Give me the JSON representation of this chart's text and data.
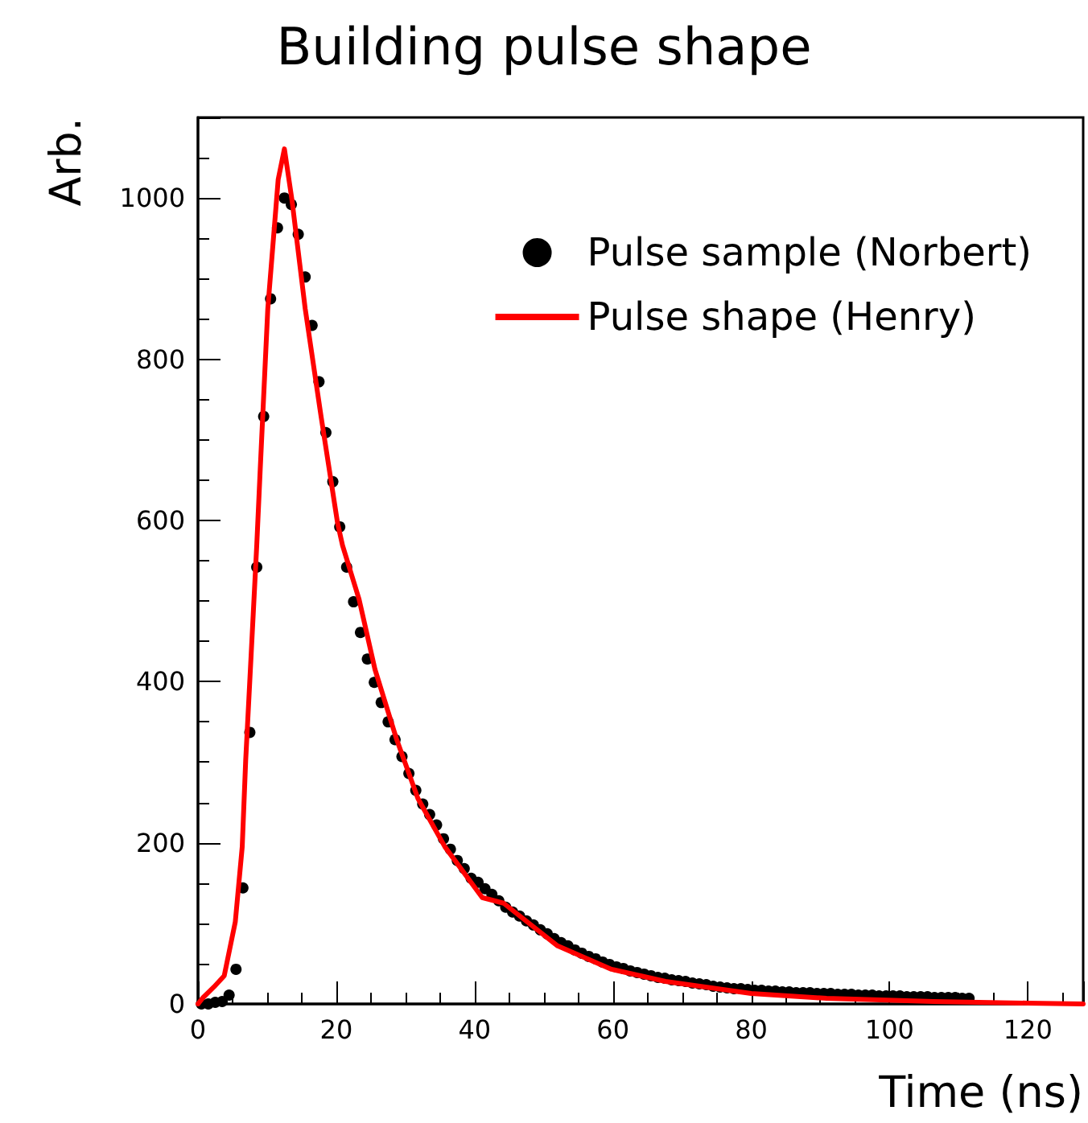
{
  "chart_data": {
    "type": "scatter",
    "title": "Building pulse shape",
    "xlabel": "Time (ns)",
    "ylabel": "Arb.",
    "xlim": [
      0,
      128
    ],
    "xticks": [
      0,
      20,
      40,
      60,
      80,
      100,
      120
    ],
    "ylim": [
      0,
      1100
    ],
    "yticks": [
      0,
      200,
      400,
      600,
      800,
      1000
    ],
    "grid": false,
    "legend": "top right",
    "series": [
      {
        "name": "Pulse sample (Norbert)",
        "marker": "circle",
        "color": "#000000",
        "x": [
          0.5,
          1.5,
          2.5,
          3.5,
          4.5,
          5.5,
          6.5,
          7.5,
          8.5,
          9.5,
          10.5,
          11.5,
          12.5,
          13.5,
          14.5,
          15.5,
          16.5,
          17.5,
          18.5,
          19.5,
          20.5,
          21.5,
          22.5,
          23.5,
          24.5,
          25.5,
          26.5,
          27.5,
          28.5,
          29.5,
          30.5,
          31.5,
          32.5,
          33.5,
          34.5,
          35.5,
          36.5,
          37.5,
          38.5,
          39.5,
          40.5,
          41.5,
          42.5,
          43.5,
          44.5,
          45.5,
          46.5,
          47.5,
          48.5,
          49.5,
          50.5,
          51.5,
          52.5,
          53.5,
          54.5,
          55.5,
          56.5,
          57.5,
          58.5,
          59.5,
          60.5,
          61.5,
          62.5,
          63.5,
          64.5,
          65.5,
          66.5,
          67.5,
          68.5,
          69.5,
          70.5,
          71.5,
          72.5,
          73.5,
          74.5,
          75.5,
          76.5,
          77.5,
          78.5,
          79.5,
          80.5,
          81.5,
          82.5,
          83.5,
          84.5,
          85.5,
          86.5,
          87.5,
          88.5,
          89.5,
          90.5,
          91.5,
          92.5,
          93.5,
          94.5,
          95.5,
          96.5,
          97.5,
          98.5,
          99.5,
          100.5,
          101.5,
          102.5,
          103.5,
          104.5,
          105.5,
          106.5,
          107.5,
          108.5,
          109.5,
          110.5,
          111.5
        ],
        "values": [
          0,
          0,
          2,
          3,
          11,
          43,
          144,
          337,
          542,
          729,
          875,
          963,
          1000,
          992,
          955,
          902,
          842,
          772,
          709,
          648,
          592,
          542,
          499,
          461,
          428,
          399,
          374,
          350,
          328,
          307,
          286,
          265,
          248,
          235,
          222,
          205,
          192,
          178,
          168,
          156,
          151,
          143,
          136,
          128,
          120,
          114,
          109,
          103,
          98,
          92,
          87,
          81,
          76,
          72,
          67,
          63,
          59,
          56,
          52,
          49,
          46,
          44,
          41,
          39,
          37,
          35,
          33,
          32,
          30,
          29,
          28,
          26,
          25,
          24,
          22,
          21,
          20,
          19,
          19,
          18,
          17,
          17,
          16,
          16,
          15,
          15,
          14,
          14,
          14,
          13,
          13,
          13,
          12,
          12,
          12,
          11,
          11,
          11,
          10,
          10,
          10,
          10,
          9,
          9,
          9,
          9,
          8,
          8,
          8,
          8,
          7,
          7
        ]
      },
      {
        "name": "Pulse shape (Henry)",
        "type": "line",
        "marker": "none",
        "line_style": "solid",
        "color": "#ff0000",
        "x": [
          0,
          0.75,
          2.3,
          3.8,
          5.4,
          6.4,
          6.9,
          7.7,
          8.5,
          9.0,
          10.1,
          11.6,
          12.5,
          13.6,
          15.5,
          17.8,
          20.2,
          20.9,
          23.3,
          25.6,
          28.7,
          31.8,
          35.7,
          41.1,
          44.2,
          52,
          59.8,
          67.6,
          80,
          90.9,
          106.4,
          120,
          128
        ],
        "values": [
          0,
          8,
          21,
          35,
          102,
          195,
          302,
          435,
          569,
          663,
          863,
          1023,
          1061,
          997,
          863,
          729,
          596,
          569,
          502,
          415,
          329,
          255,
          195,
          132,
          125,
          72,
          43,
          28,
          13,
          7,
          3,
          1,
          0
        ]
      }
    ]
  }
}
